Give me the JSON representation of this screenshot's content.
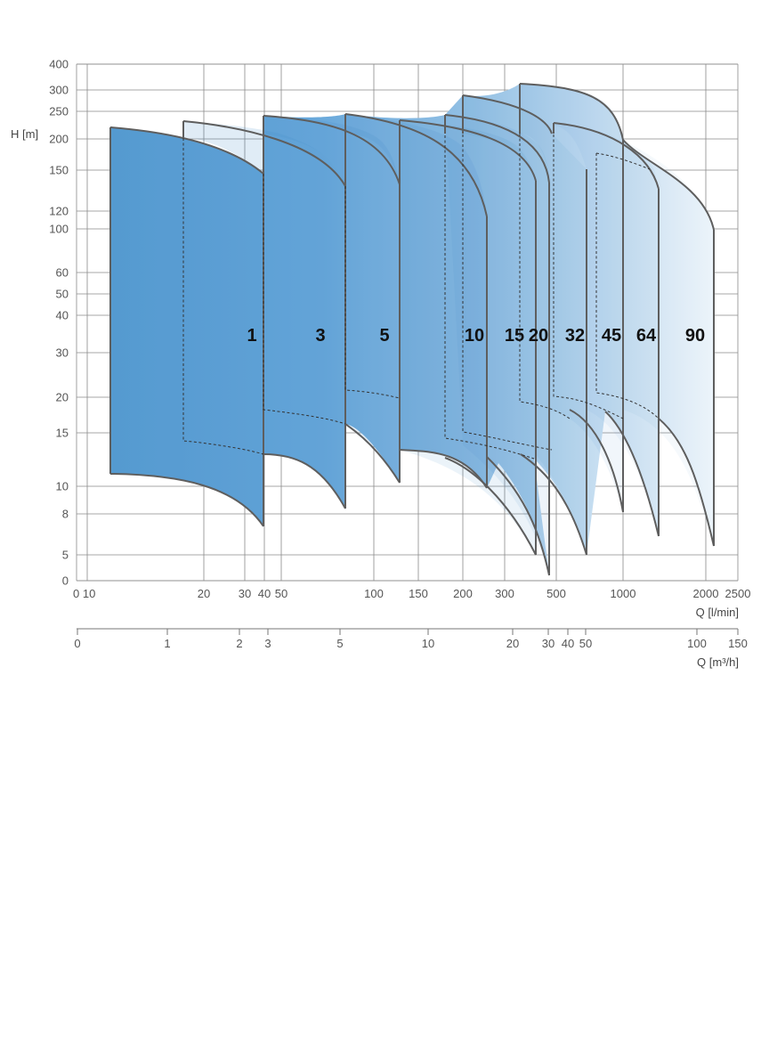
{
  "chart_data": {
    "type": "area",
    "title": "",
    "ylabel": "H [m]",
    "xlabel": "Q [l/min]",
    "x2label": "Q [m³/h]",
    "y_ticks": [
      0,
      5,
      8,
      10,
      15,
      20,
      30,
      40,
      50,
      60,
      100,
      120,
      150,
      200,
      250,
      300,
      400
    ],
    "x_ticks": [
      "0 10",
      "20",
      "30",
      "40",
      "50",
      "100",
      "150",
      "200",
      "300",
      "500",
      "1000",
      "2000",
      "2500"
    ],
    "x2_ticks": [
      "0",
      "1",
      "2",
      "3",
      "5",
      "10",
      "20",
      "30",
      "40",
      "50",
      "100",
      "150"
    ],
    "grid": true,
    "gradient_colors": [
      "#5a9fd4",
      "#f6fafd"
    ],
    "series": [
      {
        "name": "1",
        "q_range_lpm": [
          11,
          40
        ],
        "h_max": 220,
        "h_min": 11
      },
      {
        "name": "3",
        "q_range_lpm": [
          18,
          80
        ],
        "h_max": 230,
        "h_min": 7
      },
      {
        "name": "5",
        "q_range_lpm": [
          40,
          130
        ],
        "h_max": 238,
        "h_min": 8
      },
      {
        "name": "10",
        "q_range_lpm": [
          80,
          260
        ],
        "h_max": 242,
        "h_min": 10
      },
      {
        "name": "15",
        "q_range_lpm": [
          130,
          410
        ],
        "h_max": 232,
        "h_min": 10
      },
      {
        "name": "20",
        "q_range_lpm": [
          180,
          475
        ],
        "h_max": 242,
        "h_min": 5
      },
      {
        "name": "32",
        "q_range_lpm": [
          200,
          700
        ],
        "h_max": 280,
        "h_min": 5
      },
      {
        "name": "45",
        "q_range_lpm": [
          340,
          1000
        ],
        "h_max": 320,
        "h_min": 5
      },
      {
        "name": "64",
        "q_range_lpm": [
          500,
          1300
        ],
        "h_max": 225,
        "h_min": 7
      },
      {
        "name": "90",
        "q_range_lpm": [
          740,
          2000
        ],
        "h_max": 170,
        "h_min": 6
      }
    ]
  }
}
